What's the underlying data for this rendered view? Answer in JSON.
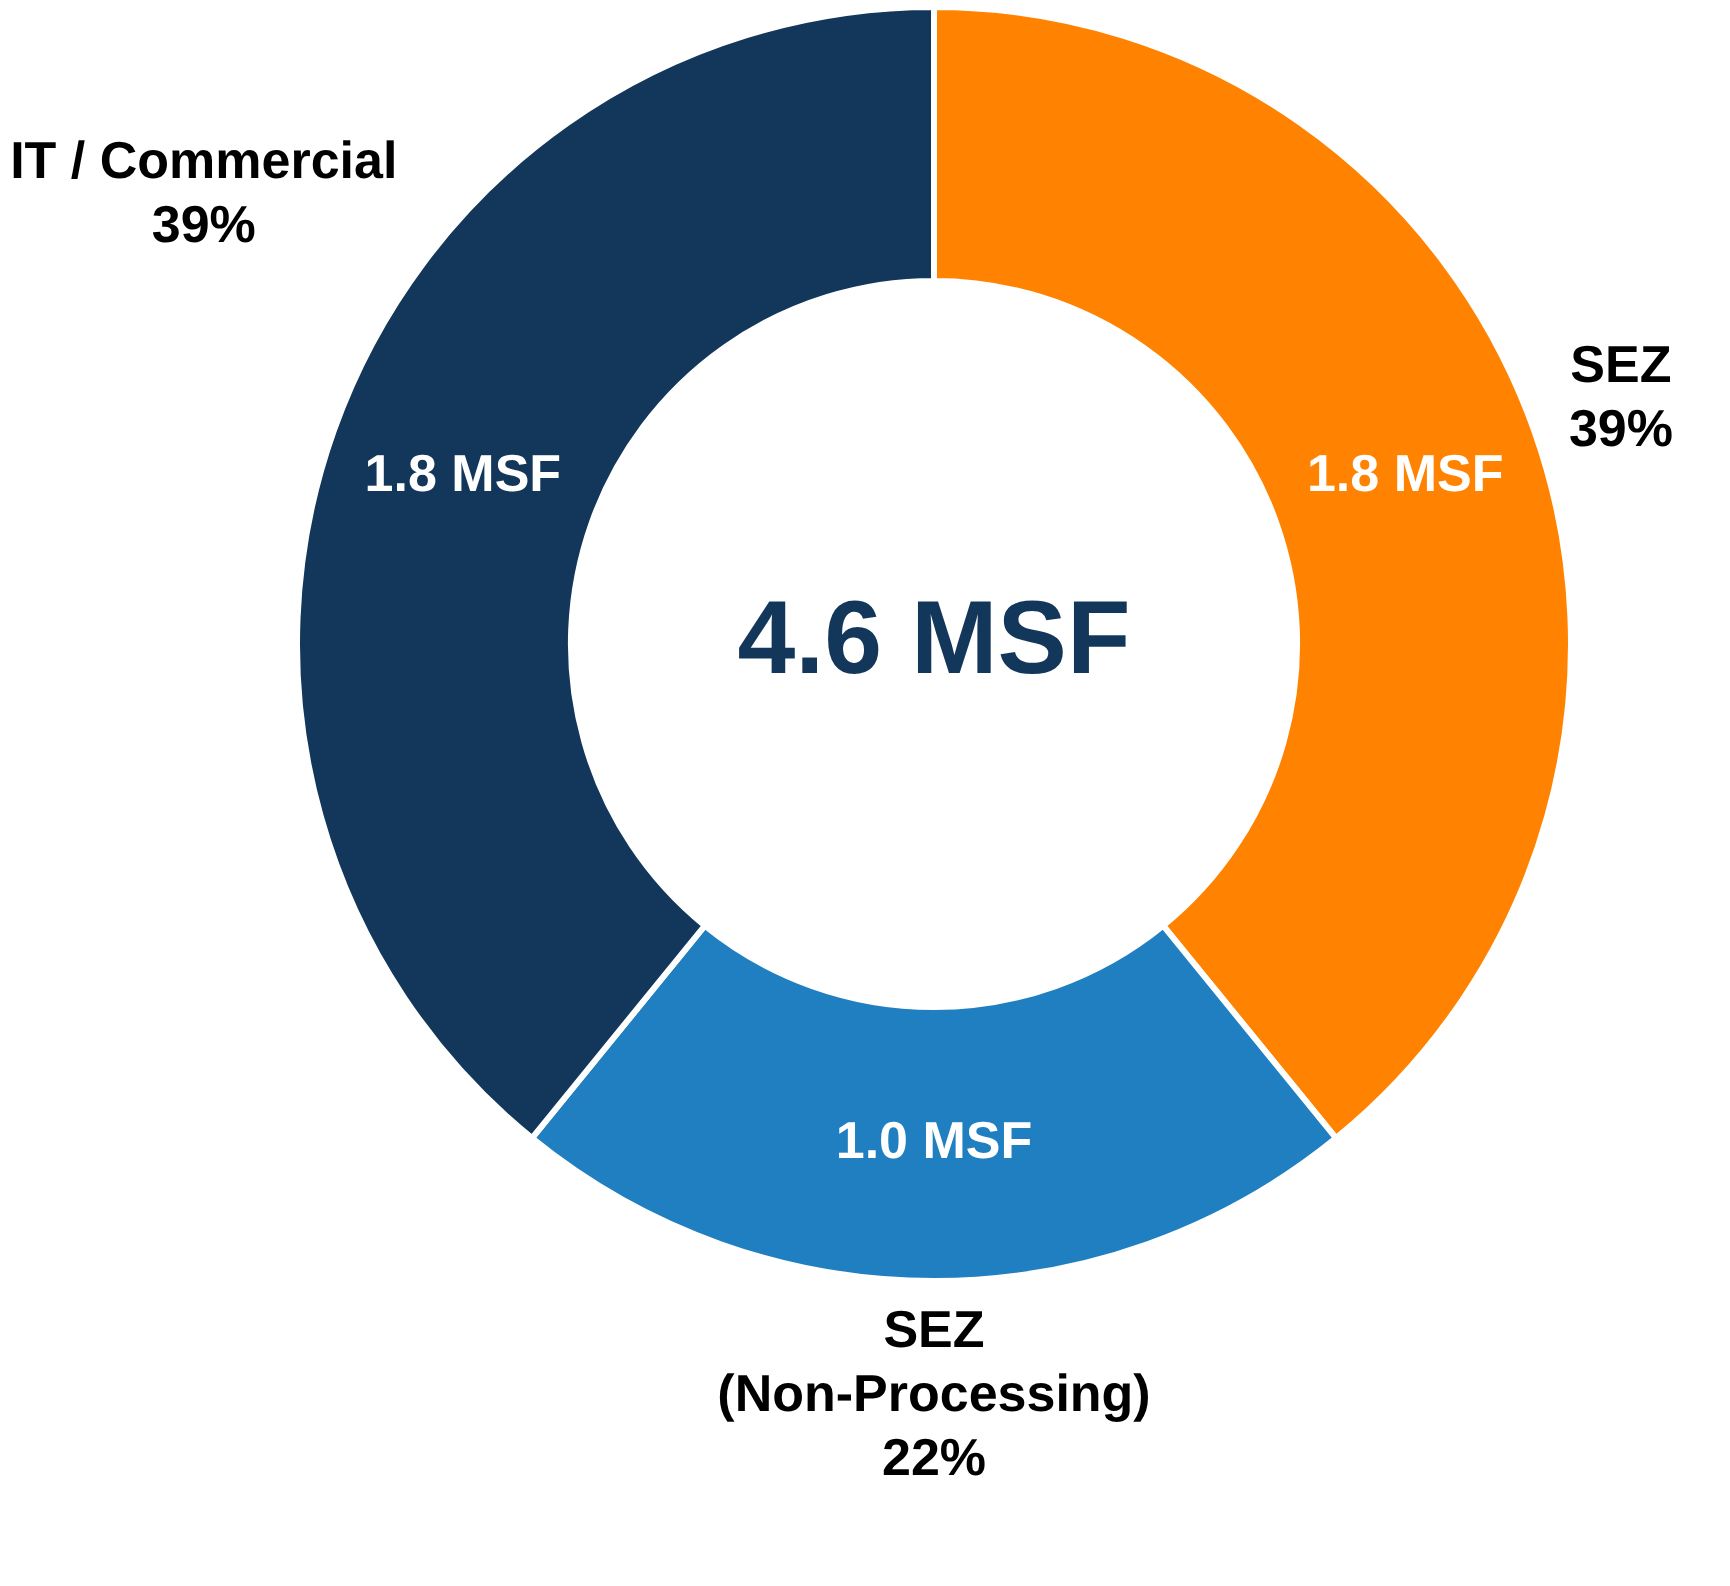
{
  "chart_data": {
    "type": "donut",
    "title": "4.6 MSF",
    "categories": [
      "SEZ",
      "SEZ (Non-Processing)",
      "IT / Commercial"
    ],
    "values": [
      1.8,
      1.0,
      1.8
    ],
    "colors": [
      "#ff8300",
      "#1f7fc0",
      "#12375a"
    ],
    "value_labels": [
      "1.8 MSF",
      "1.0 MSF",
      "1.8 MSF"
    ],
    "annotations": [
      "39%",
      "22%",
      "39%"
    ],
    "legend": false
  }
}
